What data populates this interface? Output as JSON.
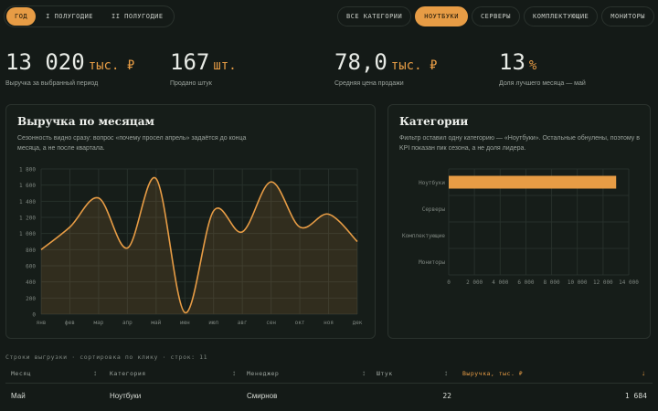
{
  "period_tabs": [
    {
      "label": "Год",
      "active": true
    },
    {
      "label": "I полугодие",
      "active": false
    },
    {
      "label": "II полугодие",
      "active": false
    }
  ],
  "category_tabs": [
    {
      "label": "Все категории",
      "active": false
    },
    {
      "label": "Ноутбуки",
      "active": true
    },
    {
      "label": "Серверы",
      "active": false
    },
    {
      "label": "Комплектующие",
      "active": false
    },
    {
      "label": "Мониторы",
      "active": false
    }
  ],
  "kpis": [
    {
      "value": "13 020",
      "unit": "тыс. ₽",
      "label": "Выручка за выбранный период"
    },
    {
      "value": "167",
      "unit": "шт.",
      "label": "Продано штук"
    },
    {
      "value": "78,0",
      "unit": "тыс. ₽",
      "label": "Средняя цена продажи"
    },
    {
      "value": "13",
      "unit": "%",
      "label": "Доля лучшего месяца — май"
    }
  ],
  "revenue_panel": {
    "title": "Выручка по месяцам",
    "subtitle": "Сезонность видно сразу: вопрос «почему просел апрель» задаётся до конца месяца, а не после квартала."
  },
  "categories_panel": {
    "title": "Категории",
    "subtitle": "Фильтр оставил одну категорию — «Ноутбуки». Остальные обнулены, поэтому в KPI показан пик сезона, а не доля лидера."
  },
  "chart_data": [
    {
      "type": "area",
      "categories": [
        "янв",
        "фев",
        "мар",
        "апр",
        "май",
        "июн",
        "июл",
        "авг",
        "сен",
        "окт",
        "ноя",
        "дек"
      ],
      "values": [
        800,
        1080,
        1440,
        820,
        1680,
        20,
        1280,
        1020,
        1640,
        1080,
        1240,
        900
      ],
      "ylim": [
        0,
        1800
      ],
      "yticks": [
        "0",
        "200",
        "400",
        "600",
        "800",
        "1 000",
        "1 200",
        "1 400",
        "1 600",
        "1 800"
      ],
      "grid": true,
      "color": "#e79c45"
    },
    {
      "type": "bar",
      "orientation": "horizontal",
      "categories": [
        "Ноутбуки",
        "Серверы",
        "Комплектующие",
        "Мониторы"
      ],
      "values": [
        13020,
        0,
        0,
        0
      ],
      "xlim": [
        0,
        14000
      ],
      "xticks": [
        "0",
        "2 000",
        "4 000",
        "6 000",
        "8 000",
        "10 000",
        "12 000",
        "14 000"
      ],
      "grid": true,
      "color": "#e79c45"
    }
  ],
  "table": {
    "caption": "Строки выгрузки · сортировка по клику · строк: 11",
    "columns": [
      {
        "label": "Месяц",
        "highlight": false
      },
      {
        "label": "Категория",
        "highlight": false
      },
      {
        "label": "Менеджер",
        "highlight": false
      },
      {
        "label": "Штук",
        "highlight": false
      },
      {
        "label": "Выручка, тыс. ₽",
        "highlight": true
      }
    ],
    "sort_icon": "↕",
    "sort_active_icon": "↓",
    "rows": [
      {
        "month": "Май",
        "category": "Ноутбуки",
        "manager": "Смирнов",
        "qty": "22",
        "revenue": "1 684"
      }
    ]
  },
  "colors": {
    "accent": "#e79c45",
    "background": "#141a17",
    "panel": "#161d19"
  }
}
